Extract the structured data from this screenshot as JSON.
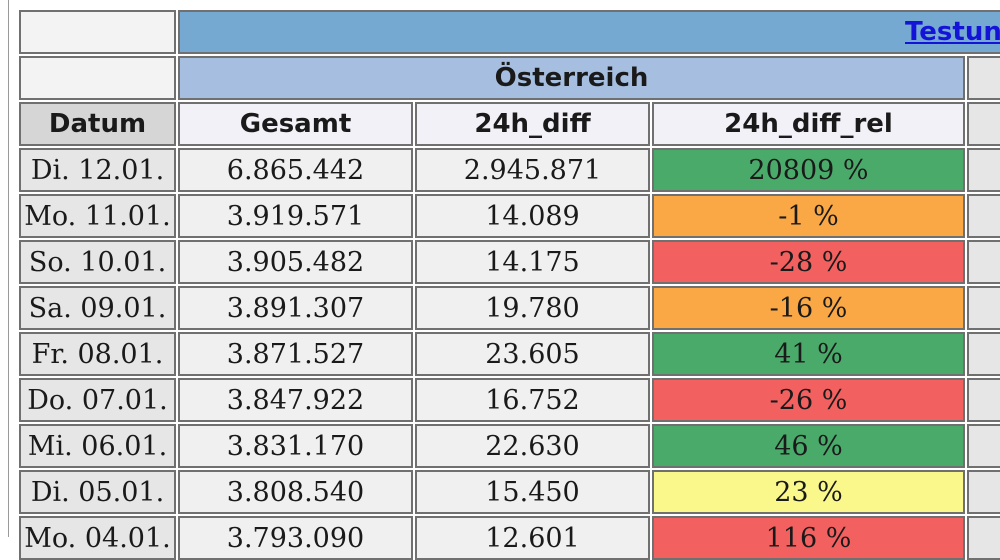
{
  "header": {
    "link_text": "Testun",
    "region": "Österreich",
    "col_datum": "Datum",
    "col_gesamt": "Gesamt",
    "col_diff": "24h_diff",
    "col_rel": "24h_diff_rel"
  },
  "colors": {
    "green": "#4aaa6a",
    "orange": "#f9a845",
    "red": "#f26060",
    "yellow": "#fbf88b"
  },
  "rows": [
    {
      "date": "Di. 12.01.",
      "gesamt": "6.865.442",
      "diff": "2.945.871",
      "rel": "20809 %",
      "status": "green"
    },
    {
      "date": "Mo. 11.01.",
      "gesamt": "3.919.571",
      "diff": "14.089",
      "rel": "-1 %",
      "status": "orange"
    },
    {
      "date": "So. 10.01.",
      "gesamt": "3.905.482",
      "diff": "14.175",
      "rel": "-28 %",
      "status": "red"
    },
    {
      "date": "Sa. 09.01.",
      "gesamt": "3.891.307",
      "diff": "19.780",
      "rel": "-16 %",
      "status": "orange"
    },
    {
      "date": "Fr. 08.01.",
      "gesamt": "3.871.527",
      "diff": "23.605",
      "rel": "41 %",
      "status": "green"
    },
    {
      "date": "Do. 07.01.",
      "gesamt": "3.847.922",
      "diff": "16.752",
      "rel": "-26 %",
      "status": "red"
    },
    {
      "date": "Mi. 06.01.",
      "gesamt": "3.831.170",
      "diff": "22.630",
      "rel": "46 %",
      "status": "green"
    },
    {
      "date": "Di. 05.01.",
      "gesamt": "3.808.540",
      "diff": "15.450",
      "rel": "23 %",
      "status": "yellow"
    },
    {
      "date": "Mo. 04.01.",
      "gesamt": "3.793.090",
      "diff": "12.601",
      "rel": "116 %",
      "status": "red"
    }
  ]
}
